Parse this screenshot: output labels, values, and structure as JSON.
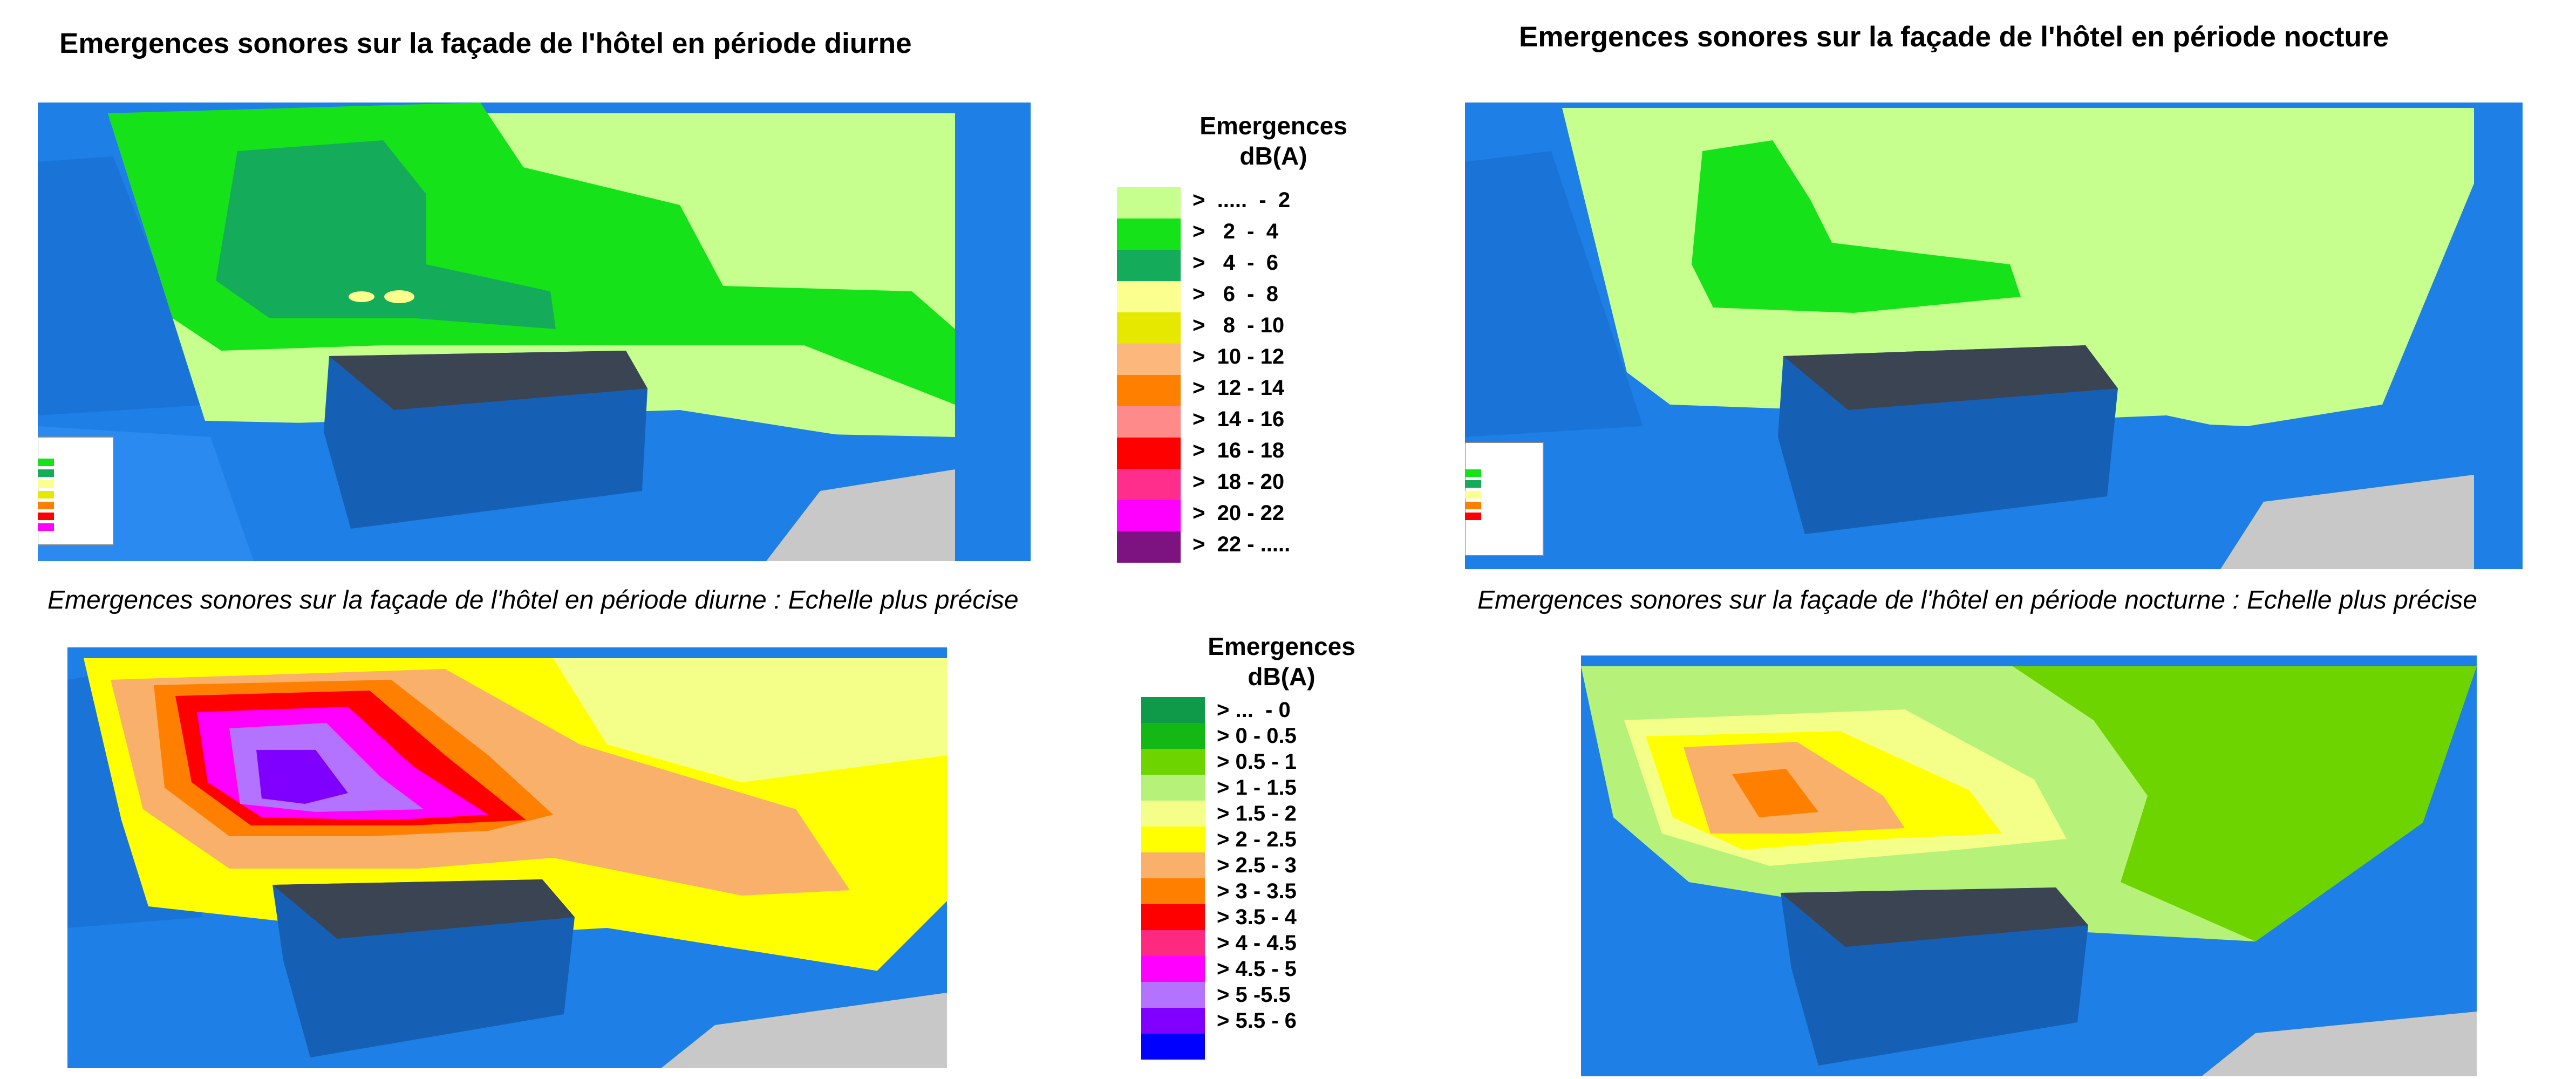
{
  "titles": {
    "day": "Emergences sonores sur la façade de l'hôtel en période diurne",
    "night": "Emergences sonores sur la façade de l'hôtel en période nocture",
    "day_fine": "Emergences sonores sur la façade de l'hôtel en période diurne : Echelle plus précise",
    "night_fine": "Emergences sonores sur la façade de l'hôtel en période nocturne : Echelle plus précise"
  },
  "legend_coarse": {
    "title_line1": "Emergences",
    "title_line2": "dB(A)",
    "items": [
      {
        "label": ">  .....  -  2",
        "color": "#c6ff8e"
      },
      {
        "label": ">   2  -  4",
        "color": "#16e21a"
      },
      {
        "label": ">   4  -  6",
        "color": "#14ab5a"
      },
      {
        "label": ">   6  -  8",
        "color": "#fbff8e"
      },
      {
        "label": ">   8  - 10",
        "color": "#e6e800"
      },
      {
        "label": ">  10 - 12",
        "color": "#fcb77c"
      },
      {
        "label": ">  12 - 14",
        "color": "#ff7f00"
      },
      {
        "label": ">  14 - 16",
        "color": "#ff8a8a"
      },
      {
        "label": ">  16 - 18",
        "color": "#ff0000"
      },
      {
        "label": ">  18 - 20",
        "color": "#ff2d8c"
      },
      {
        "label": ">  20 - 22",
        "color": "#ff00ff"
      },
      {
        "label": ">  22 - .....",
        "color": "#7d1380"
      }
    ]
  },
  "legend_fine": {
    "title_line1": "Emergences",
    "title_line2": "dB(A)",
    "items": [
      {
        "label": "> ...  - 0",
        "color": "#0f9a4a"
      },
      {
        "label": "> 0 - 0.5",
        "color": "#14b814"
      },
      {
        "label": "> 0.5 - 1",
        "color": "#6ed400"
      },
      {
        "label": "> 1 - 1.5",
        "color": "#b6f27a"
      },
      {
        "label": "> 1.5 - 2",
        "color": "#f4ff8a"
      },
      {
        "label": "> 2 - 2.5",
        "color": "#ffff00"
      },
      {
        "label": "> 2.5 - 3",
        "color": "#f8b06a"
      },
      {
        "label": "> 3 - 3.5",
        "color": "#ff8000"
      },
      {
        "label": "> 3.5 - 4",
        "color": "#ff0000"
      },
      {
        "label": "> 4 - 4.5",
        "color": "#ff2a80"
      },
      {
        "label": "> 4.5 - 5",
        "color": "#ff00ff"
      },
      {
        "label": "> 5 -5.5",
        "color": "#b473ff"
      },
      {
        "label": "> 5.5 - 6",
        "color": "#8000ff"
      },
      {
        "label": "",
        "color": "#0000ff"
      }
    ]
  },
  "colors": {
    "building_blue": "#1e7fe6",
    "building_dark": "#155fb5",
    "ground_grey": "#c8c8c8",
    "roof_dark": "#3b4452"
  }
}
